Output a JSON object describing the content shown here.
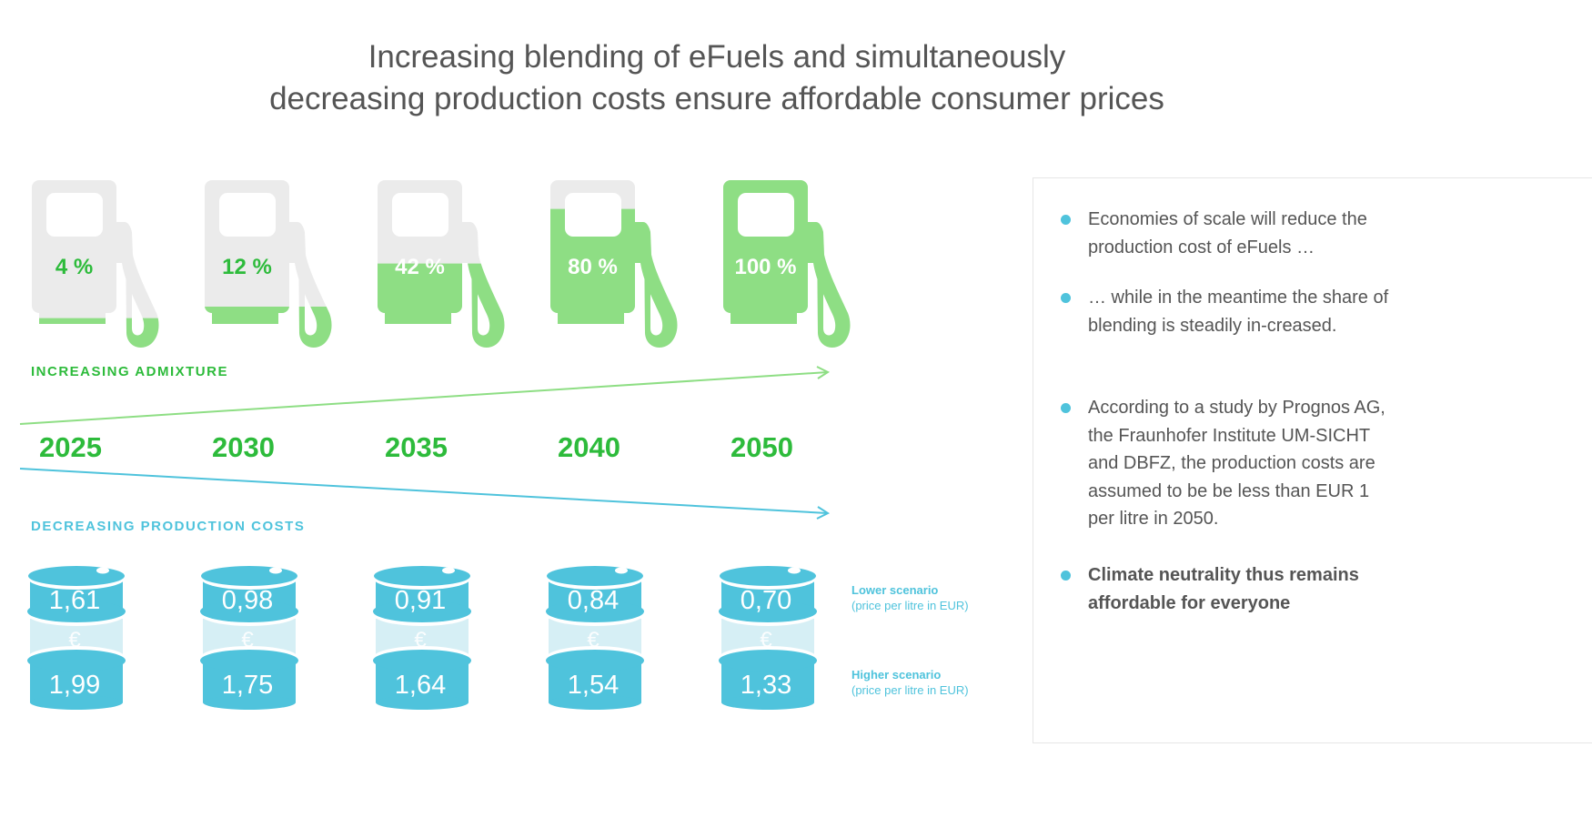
{
  "title": {
    "line1": "Increasing blending of eFuels and simultaneously",
    "line2": "decreasing production costs ensure affordable consumer prices"
  },
  "colors": {
    "green": "#2dbb3b",
    "green_fill": "#8ede84",
    "gray": "#ebebeb",
    "cyan": "#4fc3dc",
    "cyan_light": "#d6eff5"
  },
  "admixture_label": "INCREASING ADMIXTURE",
  "costs_label": "DECREASING PRODUCTION COSTS",
  "years": [
    {
      "year": "2025",
      "share": "4 %",
      "share_value": 4,
      "lower": "1,61",
      "higher": "1,99"
    },
    {
      "year": "2030",
      "share": "12 %",
      "share_value": 12,
      "lower": "0,98",
      "higher": "1,75"
    },
    {
      "year": "2035",
      "share": "42 %",
      "share_value": 42,
      "lower": "0,91",
      "higher": "1,64"
    },
    {
      "year": "2040",
      "share": "80 %",
      "share_value": 80,
      "lower": "0,84",
      "higher": "1,54"
    },
    {
      "year": "2050",
      "share": "100 %",
      "share_value": 100,
      "lower": "0,70",
      "higher": "1,33"
    }
  ],
  "currency_symbol": "€",
  "lower_scenario": {
    "title": "Lower scenario",
    "unit": "(price per litre in EUR)"
  },
  "higher_scenario": {
    "title": "Higher scenario",
    "unit": "(price per litre in EUR)"
  },
  "bullets": [
    {
      "text": "Economies of scale will reduce the production cost of eFuels …",
      "bold": false
    },
    {
      "text": "… while in the meantime the share of blending is steadily in-creased.",
      "bold": false
    },
    {
      "text": "According to a study by Prognos AG, the Fraunhofer Institute UM-SICHT and DBFZ, the production costs are assumed to be be less than EUR 1 per litre in 2050.",
      "bold": false
    },
    {
      "text": "Climate neutrality thus remains affordable for everyone",
      "bold": true
    }
  ]
}
